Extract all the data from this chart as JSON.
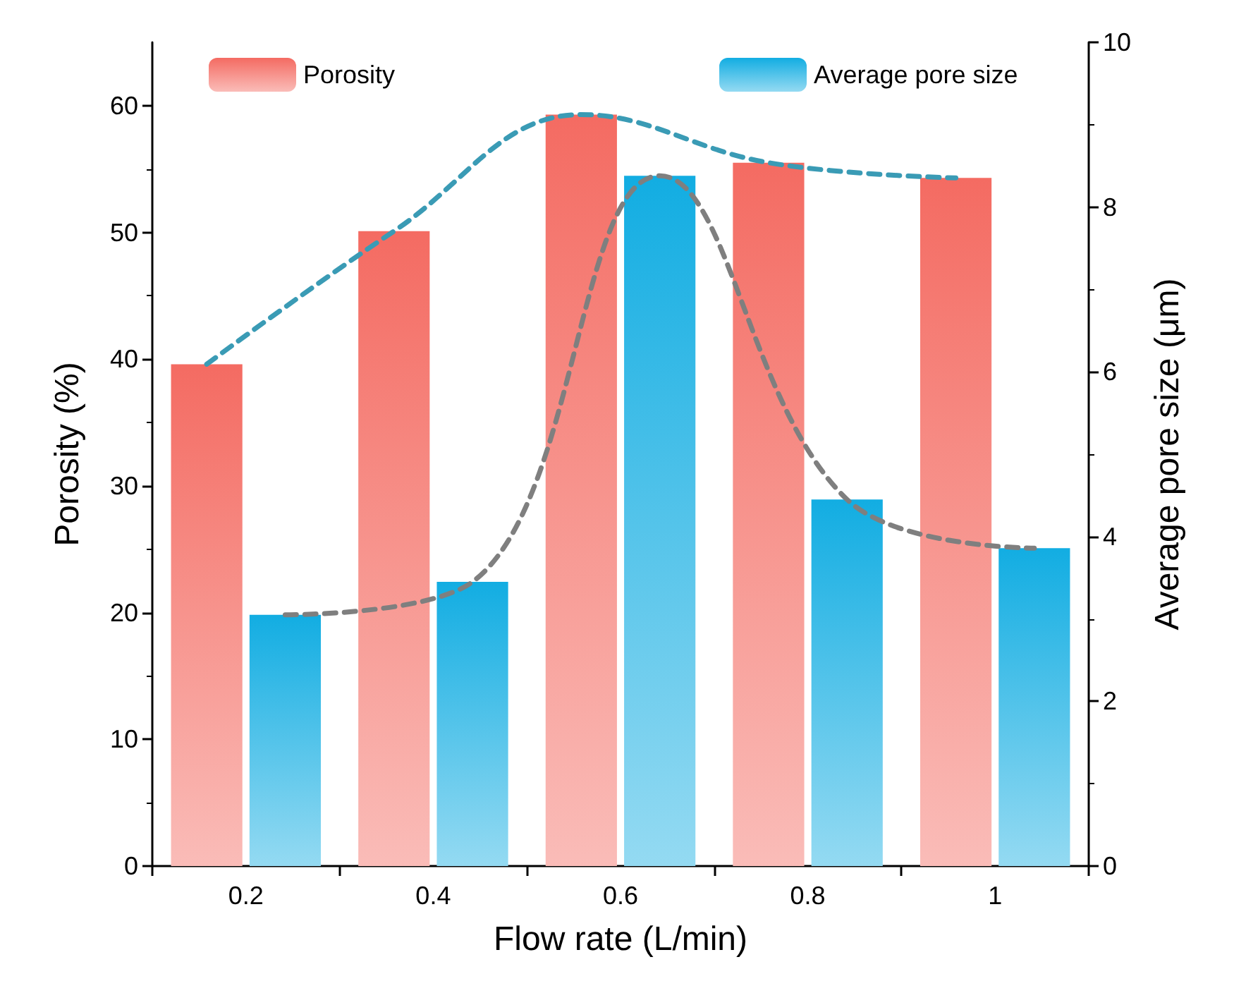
{
  "chart_data": {
    "type": "bar",
    "xlabel": "Flow rate (L/min)",
    "ylabel": "Porosity (%)",
    "y2label": "Average pore size (μm)",
    "categories": [
      "0.2",
      "0.4",
      "0.6",
      "0.8",
      "1"
    ],
    "series": [
      {
        "name": "Porosity",
        "color": "#f46b62",
        "values": [
          39.6,
          50.1,
          59.3,
          55.5,
          54.3
        ]
      },
      {
        "name": "Average pore size",
        "color": "#12ade2",
        "values": [
          3.05,
          3.45,
          8.38,
          4.45,
          3.86
        ],
        "axis": "y2"
      },
      {
        "type": "line",
        "color": "#3a9bb5",
        "values": [
          39.6,
          50.1,
          59.3,
          55.5,
          54.3
        ],
        "line_style": "dashed",
        "marker": "none"
      },
      {
        "type": "line",
        "color": "#7f7f7f",
        "values": [
          3.05,
          3.45,
          8.38,
          4.45,
          3.86
        ],
        "axis": "y2",
        "line_style": "dashed",
        "marker": "none"
      }
    ],
    "ylim": [
      0,
      65
    ],
    "yticks": [
      0,
      10,
      20,
      30,
      40,
      50,
      60
    ],
    "y2lim": [
      0,
      10
    ],
    "y2ticks": [
      0,
      2,
      4,
      6,
      8,
      10
    ],
    "grid": false,
    "legend": "top"
  }
}
